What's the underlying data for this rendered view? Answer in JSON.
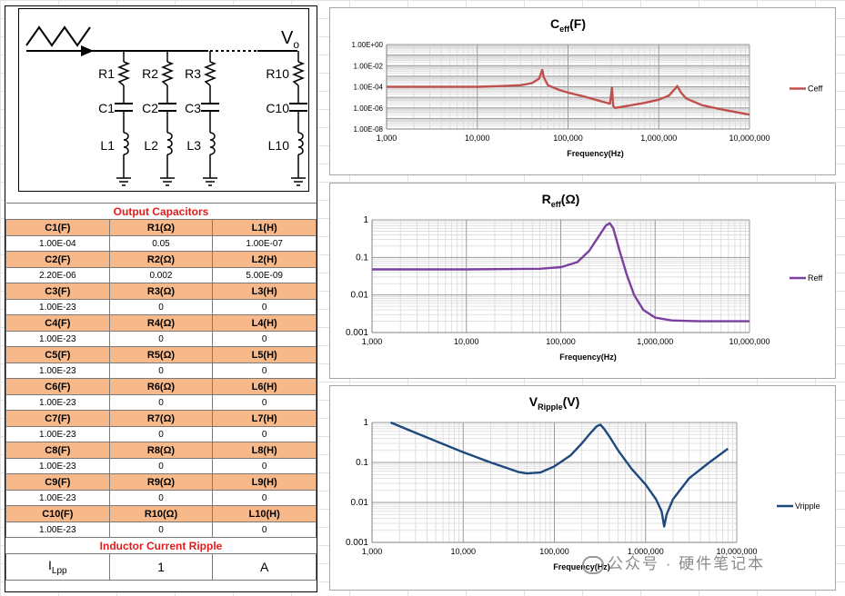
{
  "schematic": {
    "vo_label": "V",
    "vo_sub": "o",
    "branches": [
      {
        "r": "R1",
        "c": "C1",
        "l": "L1"
      },
      {
        "r": "R2",
        "c": "C2",
        "l": "L2"
      },
      {
        "r": "R3",
        "c": "C3",
        "l": "L3"
      },
      {
        "r": "R10",
        "c": "C10",
        "l": "L10"
      }
    ]
  },
  "table": {
    "title": "Output Capacitors",
    "rows": [
      {
        "hc": "C1(F)",
        "hr": "R1(Ω)",
        "hl": "L1(H)",
        "c": "1.00E-04",
        "r": "0.05",
        "l": "1.00E-07"
      },
      {
        "hc": "C2(F)",
        "hr": "R2(Ω)",
        "hl": "L2(H)",
        "c": "2.20E-06",
        "r": "0.002",
        "l": "5.00E-09"
      },
      {
        "hc": "C3(F)",
        "hr": "R3(Ω)",
        "hl": "L3(H)",
        "c": "1.00E-23",
        "r": "0",
        "l": "0"
      },
      {
        "hc": "C4(F)",
        "hr": "R4(Ω)",
        "hl": "L4(H)",
        "c": "1.00E-23",
        "r": "0",
        "l": "0"
      },
      {
        "hc": "C5(F)",
        "hr": "R5(Ω)",
        "hl": "L5(H)",
        "c": "1.00E-23",
        "r": "0",
        "l": "0"
      },
      {
        "hc": "C6(F)",
        "hr": "R6(Ω)",
        "hl": "L6(H)",
        "c": "1.00E-23",
        "r": "0",
        "l": "0"
      },
      {
        "hc": "C7(F)",
        "hr": "R7(Ω)",
        "hl": "L7(H)",
        "c": "1.00E-23",
        "r": "0",
        "l": "0"
      },
      {
        "hc": "C8(F)",
        "hr": "R8(Ω)",
        "hl": "L8(H)",
        "c": "1.00E-23",
        "r": "0",
        "l": "0"
      },
      {
        "hc": "C9(F)",
        "hr": "R9(Ω)",
        "hl": "L9(H)",
        "c": "1.00E-23",
        "r": "0",
        "l": "0"
      },
      {
        "hc": "C10(F)",
        "hr": "R10(Ω)",
        "hl": "L10(H)",
        "c": "1.00E-23",
        "r": "0",
        "l": "0"
      }
    ],
    "ripple_title": "Inductor Current Ripple",
    "ilpp_label": "I",
    "ilpp_sub": "Lpp",
    "ilpp_value": "1",
    "ilpp_unit": "A"
  },
  "watermark": "公众号 · 硬件笔记本",
  "colors": {
    "ceff": "#c0504d",
    "reff": "#7b3fa0",
    "vripple": "#1f497d",
    "header_fill": "#f7b98a",
    "title_red": "#e31b1b"
  },
  "chart_data": [
    {
      "type": "line",
      "title_main": "C",
      "title_sub": "eff",
      "title_unit": "(F)",
      "xlabel": "Frequency(Hz)",
      "ylabel": "",
      "xscale": "log",
      "yscale": "log",
      "xlim": [
        1000,
        10000000
      ],
      "ylim": [
        1e-08,
        1
      ],
      "xticks": [
        "1,000",
        "10,000",
        "100,000",
        "1,000,000",
        "10,000,000"
      ],
      "yticks": [
        "1.00E-08",
        "1.00E-06",
        "1.00E-04",
        "1.00E-02",
        "1.00E+00"
      ],
      "legend": "right",
      "series": [
        {
          "name": "Ceff",
          "x": [
            1000,
            3000,
            10000,
            20000,
            30000,
            40000,
            48000,
            52000,
            54000,
            60000,
            80000,
            100000,
            150000,
            200000,
            250000,
            290000,
            305000,
            315000,
            330000,
            380000,
            500000,
            700000,
            1000000,
            1300000,
            1500000,
            1600000,
            1750000,
            2000000,
            3000000,
            5000000,
            10000000
          ],
          "values": [
            0.0001,
            0.0001,
            0.0001,
            0.00012,
            0.00014,
            0.00022,
            0.0006,
            0.004,
            0.0008,
            0.00014,
            5e-05,
            2.8e-05,
            1.2e-05,
            6e-06,
            3.5e-06,
            2.5e-06,
            8e-05,
            1.5e-06,
            1e-06,
            1.2e-06,
            1.8e-06,
            3e-06,
            6e-06,
            1.5e-05,
            6e-05,
            0.00012,
            3e-05,
            8e-06,
            1.8e-06,
            7e-07,
            2.3e-07
          ]
        }
      ]
    },
    {
      "type": "line",
      "title_main": "R",
      "title_sub": "eff",
      "title_unit": "(Ω)",
      "xlabel": "Frequency(Hz)",
      "ylabel": "",
      "xscale": "log",
      "yscale": "log",
      "xlim": [
        1000,
        10000000
      ],
      "ylim": [
        0.001,
        1
      ],
      "xticks": [
        "1,000",
        "10,000",
        "100,000",
        "1,000,000",
        "10,000,000"
      ],
      "yticks": [
        "0.001",
        "0.01",
        "0.1",
        "1"
      ],
      "legend": "right",
      "series": [
        {
          "name": "Reff",
          "x": [
            1000,
            10000,
            30000,
            60000,
            100000,
            150000,
            200000,
            250000,
            300000,
            330000,
            360000,
            420000,
            500000,
            600000,
            750000,
            1000000,
            1500000,
            3000000,
            10000000
          ],
          "values": [
            0.048,
            0.048,
            0.049,
            0.05,
            0.055,
            0.075,
            0.15,
            0.35,
            0.7,
            0.82,
            0.6,
            0.15,
            0.035,
            0.01,
            0.004,
            0.0025,
            0.0021,
            0.002,
            0.002
          ]
        }
      ]
    },
    {
      "type": "line",
      "title_main": "V",
      "title_sub": "Ripple",
      "title_unit": "(V)",
      "xlabel": "Frequency(Hz)",
      "ylabel": "",
      "xscale": "log",
      "yscale": "log",
      "xlim": [
        1000,
        10000000
      ],
      "ylim": [
        0.001,
        1
      ],
      "xticks": [
        "1,000",
        "10,000",
        "100,000",
        "1,000,000",
        "10,000,000"
      ],
      "yticks": [
        "0.001",
        "0.01",
        "0.1",
        "1"
      ],
      "legend": "right",
      "series": [
        {
          "name": "Vripple",
          "x": [
            1600,
            3000,
            10000,
            20000,
            40000,
            50000,
            70000,
            100000,
            150000,
            200000,
            250000,
            290000,
            320000,
            350000,
            400000,
            500000,
            700000,
            1000000,
            1300000,
            1500000,
            1600000,
            1700000,
            2000000,
            3000000,
            5000000,
            8000000
          ],
          "values": [
            1.0,
            0.55,
            0.18,
            0.1,
            0.058,
            0.053,
            0.056,
            0.08,
            0.15,
            0.3,
            0.55,
            0.8,
            0.88,
            0.7,
            0.45,
            0.2,
            0.07,
            0.028,
            0.012,
            0.006,
            0.0025,
            0.005,
            0.012,
            0.04,
            0.1,
            0.22
          ]
        }
      ]
    }
  ]
}
